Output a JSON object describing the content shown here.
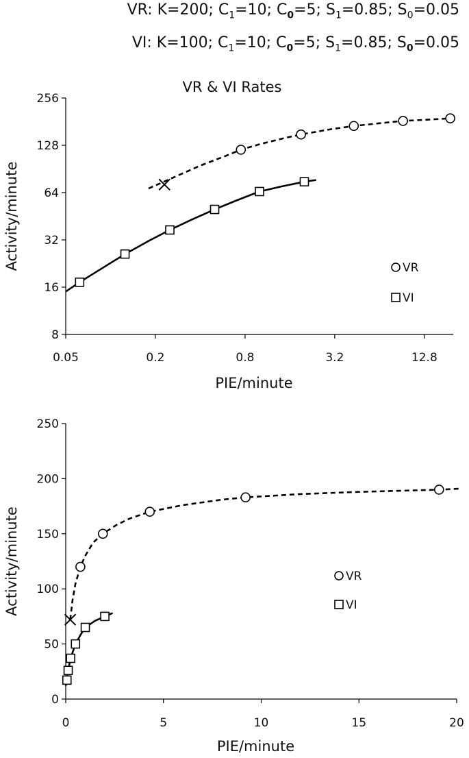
{
  "header": {
    "vr": {
      "prefix": "VR: K=200; C",
      "c1_sub": "1",
      "c1_val": "=10; C",
      "c0_sub": "0",
      "c0_val": "=5; S",
      "s1_sub": "1",
      "s1_val": "=0.85; S",
      "s0_sub": "0",
      "s0_val": "=0.05"
    },
    "vi": {
      "prefix": "VI: K=100; C",
      "c1_sub": "1",
      "c1_val": "=10; C",
      "c0_sub": "0",
      "c0_val": "=5; S",
      "s1_sub": "1",
      "s1_val": "=0.85; S",
      "s0_sub": "0",
      "s0_val": "=0.05"
    }
  },
  "chart_data": [
    {
      "type": "scatter",
      "title": "VR & VI Rates",
      "xlabel": "PIE/minute",
      "ylabel": "Activity/minute",
      "xscale": "log2",
      "yscale": "log2",
      "xlim": [
        0.05,
        20
      ],
      "ylim": [
        8,
        256
      ],
      "xticks": [
        0.05,
        0.2,
        0.8,
        3.2,
        12.8
      ],
      "xtick_labels": [
        "0.05",
        "0.2",
        "0.8",
        "3.2",
        "12.8"
      ],
      "yticks": [
        8,
        16,
        32,
        64,
        128,
        256
      ],
      "ytick_labels": [
        "8",
        "16",
        "32",
        "64",
        "128",
        "256"
      ],
      "legend": {
        "position": "right",
        "entries": [
          {
            "name": "VR",
            "marker": "circle"
          },
          {
            "name": "VI",
            "marker": "square"
          }
        ]
      },
      "series": [
        {
          "name": "VR",
          "marker": "circle",
          "line": "dashed",
          "x": [
            0.75,
            1.9,
            4.3,
            9.2,
            19.1
          ],
          "y": [
            120,
            150,
            170,
            183,
            190
          ]
        },
        {
          "name": "VI",
          "marker": "square",
          "line": "solid",
          "x": [
            0.062,
            0.125,
            0.25,
            0.5,
            1.0,
            2.0
          ],
          "y": [
            17.2,
            26,
            37,
            50,
            65,
            75
          ]
        }
      ],
      "fit_curves": [
        {
          "name": "VR",
          "line": "dashed",
          "x": [
            0.18,
            0.25,
            0.4,
            0.6,
            0.75,
            1.0,
            1.5,
            1.9,
            3.0,
            4.3,
            6.5,
            9.2,
            13.0,
            19.1,
            21.0
          ],
          "y": [
            68,
            78,
            95,
            110,
            120,
            130,
            143,
            150,
            162,
            170,
            177,
            183,
            186,
            190,
            191
          ]
        },
        {
          "name": "VI",
          "line": "solid",
          "x": [
            0.05,
            0.062,
            0.08,
            0.125,
            0.18,
            0.25,
            0.35,
            0.5,
            0.7,
            1.0,
            1.4,
            2.0,
            2.4
          ],
          "y": [
            15,
            17.2,
            20,
            26,
            31.5,
            37,
            43,
            50,
            57,
            65,
            70,
            75,
            77
          ]
        }
      ],
      "annotations": [
        {
          "label": "X",
          "x": 0.23,
          "y": 72
        }
      ]
    },
    {
      "type": "scatter",
      "title": "",
      "xlabel": "PIE/minute",
      "ylabel": "Activity/minute",
      "xscale": "linear",
      "yscale": "linear",
      "xlim": [
        0,
        20
      ],
      "ylim": [
        0,
        250
      ],
      "xticks": [
        0,
        5,
        10,
        15,
        20
      ],
      "xtick_labels": [
        "0",
        "5",
        "10",
        "15",
        "20"
      ],
      "yticks": [
        0,
        50,
        100,
        150,
        200,
        250
      ],
      "ytick_labels": [
        "0",
        "50",
        "100",
        "150",
        "200",
        "250"
      ],
      "legend": {
        "position": "right",
        "entries": [
          {
            "name": "VR",
            "marker": "circle"
          },
          {
            "name": "VI",
            "marker": "square"
          }
        ]
      },
      "series": [
        {
          "name": "VR",
          "marker": "circle",
          "line": "dashed",
          "x": [
            0.75,
            1.9,
            4.3,
            9.2,
            19.1
          ],
          "y": [
            120,
            150,
            170,
            183,
            190
          ]
        },
        {
          "name": "VI",
          "marker": "square",
          "line": "solid",
          "x": [
            0.062,
            0.125,
            0.25,
            0.5,
            1.0,
            2.0
          ],
          "y": [
            17.2,
            26,
            37,
            50,
            65,
            75
          ]
        }
      ],
      "fit_curves": [
        {
          "name": "VR",
          "line": "dashed",
          "x": [
            0.23,
            0.35,
            0.5,
            0.75,
            1.0,
            1.4,
            1.9,
            2.6,
            3.3,
            4.3,
            6,
            8,
            9.2,
            12,
            15,
            19.1,
            20.2
          ],
          "y": [
            72,
            90,
            105,
            120,
            130,
            142,
            150,
            158,
            164,
            170,
            176,
            181,
            183,
            186,
            188,
            190,
            191
          ]
        },
        {
          "name": "VI",
          "line": "solid",
          "x": [
            0,
            0.062,
            0.125,
            0.25,
            0.5,
            0.75,
            1.0,
            1.5,
            2.0,
            2.4
          ],
          "y": [
            12,
            17.2,
            26,
            37,
            50,
            58,
            65,
            71,
            75,
            78
          ]
        }
      ],
      "annotations": [
        {
          "label": "X",
          "x": 0.23,
          "y": 72
        }
      ]
    }
  ]
}
